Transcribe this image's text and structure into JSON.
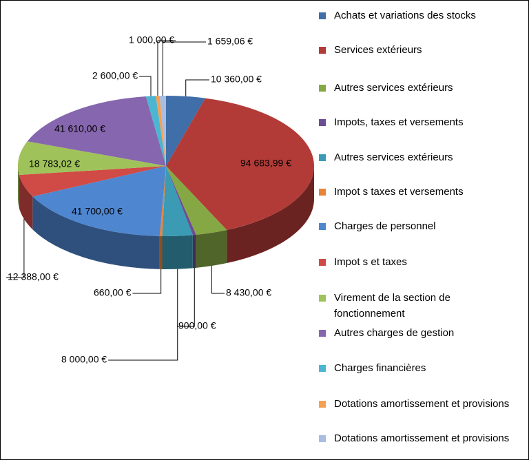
{
  "chart_data": {
    "type": "pie3d",
    "categories": [
      "Achats et variations des stocks",
      "Services extérieurs",
      "Autres services extérieurs",
      "Impots, taxes et versements",
      "Autres services extérieurs",
      "Impot s taxes et versements",
      "Charges de personnel",
      "Impot s et taxes",
      "Virement de la section de fonctionnement",
      "Autres charges de gestion",
      "Charges financières",
      "Dotations amortissement et provisions",
      "Dotations amortissement et provisions"
    ],
    "values": [
      10360,
      94683.99,
      8430,
      900,
      8000,
      660,
      41700,
      12388,
      18783.02,
      41610,
      2600,
      1000,
      1659.06
    ],
    "value_labels": [
      "10 360,00 €",
      "94 683,99 €",
      "8 430,00 €",
      "900,00 €",
      "8 000,00 €",
      "660,00 €",
      "41 700,00 €",
      "12 388,00 €",
      "18 783,02 €",
      "41 610,00 €",
      "2 600,00 €",
      "1 000,00 €",
      "1 659,06 €"
    ],
    "colors": [
      "#3f6ea8",
      "#b23b38",
      "#86a844",
      "#6b4f92",
      "#3b9ab4",
      "#e8833a",
      "#4f86d0",
      "#d04a46",
      "#a0c25a",
      "#8666ae",
      "#4cb6d2",
      "#f5a052",
      "#a9bde0"
    ],
    "legend": "right"
  }
}
